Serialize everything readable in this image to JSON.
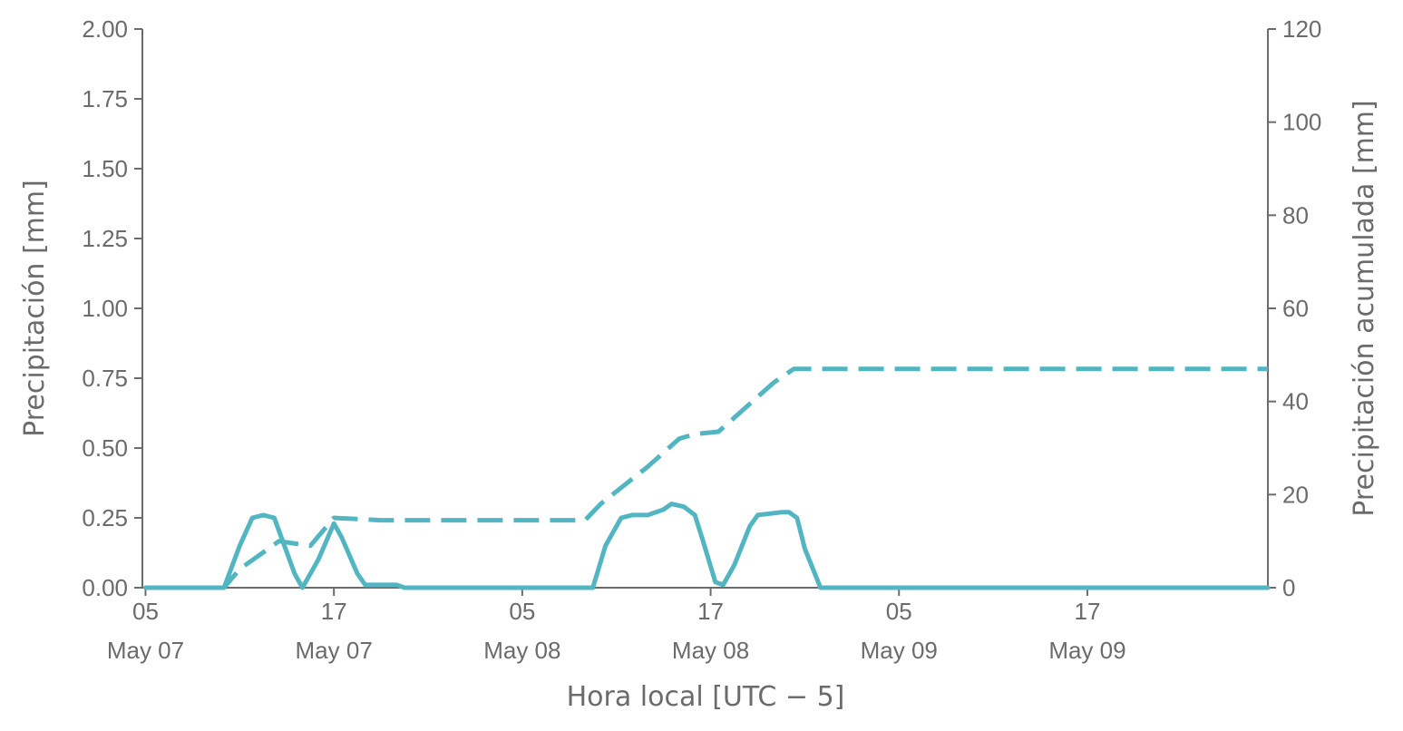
{
  "chart_data": {
    "type": "line",
    "xlabel": "Hora local [UTC − 5]",
    "ylabel_left": "Precipitación [mm]",
    "ylabel_right": "Precipitación acumulada [mm]",
    "x_ticks": [
      {
        "hour": 0,
        "label_top": "05",
        "label_bottom": "May 07"
      },
      {
        "hour": 12,
        "label_top": "17",
        "label_bottom": "May 07"
      },
      {
        "hour": 24,
        "label_top": "05",
        "label_bottom": "May 08"
      },
      {
        "hour": 36,
        "label_top": "17",
        "label_bottom": "May 08"
      },
      {
        "hour": 48,
        "label_top": "05",
        "label_bottom": "May 09"
      },
      {
        "hour": 60,
        "label_top": "17",
        "label_bottom": "May 09"
      }
    ],
    "x_hour_zero": "May 07 05:00",
    "xlim_hours": [
      -0.2,
      71.5
    ],
    "ylim_left": [
      0,
      2.0
    ],
    "yticks_left": [
      "0.00",
      "0.25",
      "0.50",
      "0.75",
      "1.00",
      "1.25",
      "1.50",
      "1.75",
      "2.00"
    ],
    "ylim_right": [
      0,
      120
    ],
    "yticks_right": [
      "0",
      "20",
      "40",
      "60",
      "80",
      "100",
      "120"
    ],
    "color": "#52b5c2",
    "series": [
      {
        "axis": "left",
        "style": "solid",
        "points": [
          [
            0,
            0.0
          ],
          [
            4,
            0.0
          ],
          [
            5,
            0.0
          ],
          [
            6,
            0.15
          ],
          [
            6.8,
            0.25
          ],
          [
            7.5,
            0.26
          ],
          [
            8.2,
            0.25
          ],
          [
            9.5,
            0.05
          ],
          [
            10,
            0.0
          ],
          [
            11,
            0.1
          ],
          [
            12,
            0.23
          ],
          [
            12.5,
            0.18
          ],
          [
            13.5,
            0.05
          ],
          [
            14,
            0.01
          ],
          [
            16,
            0.01
          ],
          [
            16.5,
            0.0
          ],
          [
            28.5,
            0.0
          ],
          [
            29.3,
            0.15
          ],
          [
            30.3,
            0.25
          ],
          [
            31,
            0.26
          ],
          [
            32,
            0.26
          ],
          [
            33,
            0.28
          ],
          [
            33.5,
            0.3
          ],
          [
            34.3,
            0.29
          ],
          [
            35,
            0.26
          ],
          [
            35.5,
            0.17
          ],
          [
            36.3,
            0.02
          ],
          [
            36.8,
            0.01
          ],
          [
            37.5,
            0.08
          ],
          [
            38.5,
            0.22
          ],
          [
            39,
            0.26
          ],
          [
            40.5,
            0.27
          ],
          [
            41,
            0.27
          ],
          [
            41.5,
            0.25
          ],
          [
            42,
            0.14
          ],
          [
            43,
            0.0
          ],
          [
            71.5,
            0.0
          ]
        ]
      },
      {
        "axis": "right",
        "style": "dashed",
        "points": [
          [
            0,
            0
          ],
          [
            5,
            0
          ],
          [
            6,
            4
          ],
          [
            8.5,
            10
          ],
          [
            10.5,
            9
          ],
          [
            12,
            15
          ],
          [
            15,
            14.5
          ],
          [
            28,
            14.5
          ],
          [
            29,
            18
          ],
          [
            32,
            26
          ],
          [
            34,
            32
          ],
          [
            35,
            33
          ],
          [
            36.5,
            33.5
          ],
          [
            38,
            38
          ],
          [
            40,
            44
          ],
          [
            41.3,
            47
          ],
          [
            71.5,
            47
          ]
        ]
      }
    ]
  }
}
